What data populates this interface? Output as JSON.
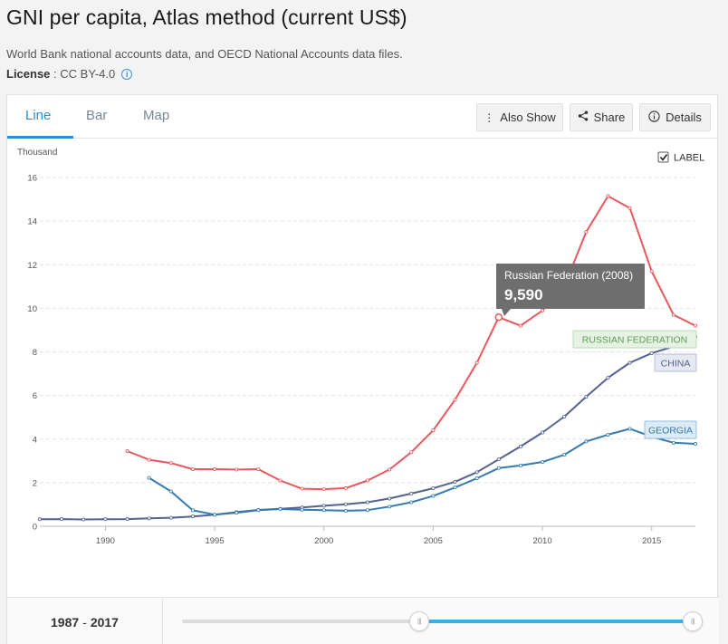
{
  "header": {
    "title": "GNI per capita, Atlas method (current US$)",
    "source": "World Bank national accounts data, and OECD National Accounts data files.",
    "license_label": "License",
    "license_value": " : CC BY-4.0",
    "info_icon": "info-circle-icon"
  },
  "tabs": [
    {
      "label": "Line",
      "active": true
    },
    {
      "label": "Bar",
      "active": false
    },
    {
      "label": "Map",
      "active": false
    }
  ],
  "toolbar": {
    "also_show_label": "Also Show",
    "share_label": "Share",
    "details_label": "Details",
    "also_show_icon": "vertical-dots-icon",
    "share_icon": "share-icon",
    "details_icon": "info-circle-icon"
  },
  "label_toggle": {
    "label": "LABEL",
    "checked": true
  },
  "tooltip": {
    "title": "Russian Federation (2008)",
    "value": "9,590"
  },
  "range": {
    "start": "1987",
    "end": "2017"
  },
  "colors": {
    "russia": "#e8585e",
    "china": "#55628f",
    "georgia": "#347bb0",
    "accent": "#2b8dd6"
  },
  "chart_data": {
    "type": "line",
    "ylabel": "Thousand",
    "ylim": [
      0,
      16
    ],
    "yticks": [
      0,
      2,
      4,
      6,
      8,
      10,
      12,
      14,
      16
    ],
    "xlim": [
      1987,
      2017
    ],
    "xticks": [
      1990,
      1995,
      2000,
      2005,
      2010,
      2015
    ],
    "grid": true,
    "series": [
      {
        "name": "RUSSIAN FEDERATION",
        "color": "#e8585e",
        "x": [
          1991,
          1992,
          1993,
          1994,
          1995,
          1996,
          1997,
          1998,
          1999,
          2000,
          2001,
          2002,
          2003,
          2004,
          2005,
          2006,
          2007,
          2008,
          2009,
          2010,
          2011,
          2012,
          2013,
          2014,
          2015,
          2016,
          2017
        ],
        "y": [
          3.45,
          3.05,
          2.9,
          2.62,
          2.62,
          2.6,
          2.62,
          2.1,
          1.72,
          1.7,
          1.75,
          2.1,
          2.6,
          3.4,
          4.4,
          5.8,
          7.5,
          9.59,
          9.2,
          9.9,
          11.0,
          13.5,
          15.15,
          14.6,
          11.7,
          9.7,
          9.2
        ]
      },
      {
        "name": "CHINA",
        "color": "#55628f",
        "x": [
          1987,
          1988,
          1989,
          1990,
          1991,
          1992,
          1993,
          1994,
          1995,
          1996,
          1997,
          1998,
          1999,
          2000,
          2001,
          2002,
          2003,
          2004,
          2005,
          2006,
          2007,
          2008,
          2009,
          2010,
          2011,
          2012,
          2013,
          2014,
          2015,
          2016,
          2017
        ],
        "y": [
          0.32,
          0.33,
          0.31,
          0.32,
          0.33,
          0.36,
          0.39,
          0.45,
          0.53,
          0.65,
          0.75,
          0.8,
          0.86,
          0.94,
          1.01,
          1.1,
          1.27,
          1.5,
          1.74,
          2.04,
          2.48,
          3.07,
          3.66,
          4.3,
          5.03,
          5.94,
          6.81,
          7.5,
          7.94,
          8.25,
          8.7
        ]
      },
      {
        "name": "GEORGIA",
        "color": "#347bb0",
        "x": [
          1992,
          1993,
          1994,
          1995,
          1996,
          1997,
          1998,
          1999,
          2000,
          2001,
          2002,
          2003,
          2004,
          2005,
          2006,
          2007,
          2008,
          2009,
          2010,
          2011,
          2012,
          2013,
          2014,
          2015,
          2016,
          2017
        ],
        "y": [
          2.22,
          1.6,
          0.73,
          0.53,
          0.62,
          0.74,
          0.79,
          0.76,
          0.74,
          0.71,
          0.74,
          0.9,
          1.1,
          1.39,
          1.78,
          2.2,
          2.67,
          2.79,
          2.95,
          3.28,
          3.89,
          4.2,
          4.47,
          4.11,
          3.83,
          3.78
        ]
      }
    ]
  }
}
